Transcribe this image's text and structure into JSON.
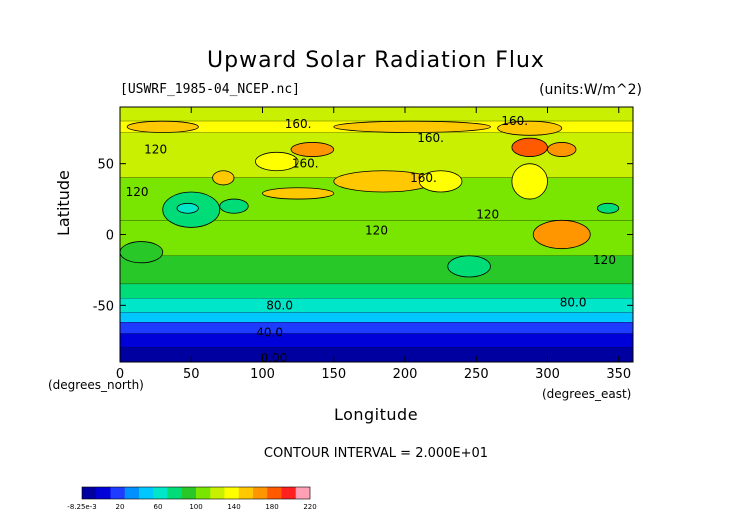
{
  "chart_data": {
    "type": "heatmap",
    "title": "Upward Solar Radiation Flux",
    "source_label": "[USWRF_1985-04_NCEP.nc]",
    "units_label": "(units:W/m^2)",
    "xlabel": "Longitude",
    "ylabel": "Latitude",
    "x_unit_label": "(degrees_north)",
    "y_unit_label": "(degrees_east)",
    "xlim": [
      0,
      360
    ],
    "ylim": [
      -90,
      90
    ],
    "x_ticks": [
      0,
      50,
      100,
      150,
      200,
      250,
      300,
      350
    ],
    "y_ticks": [
      -50,
      0,
      50
    ],
    "contour_interval_label": "CONTOUR INTERVAL = 2.000E+01",
    "contour_labels": [
      {
        "text": "160.",
        "lon": 125,
        "lat": 78
      },
      {
        "text": "160.",
        "lon": 218,
        "lat": 68
      },
      {
        "text": "160.",
        "lon": 277,
        "lat": 80
      },
      {
        "text": "160.",
        "lon": 130,
        "lat": 50
      },
      {
        "text": "160.",
        "lon": 213,
        "lat": 40
      },
      {
        "text": "120",
        "lon": 25,
        "lat": 60
      },
      {
        "text": "120",
        "lon": 12,
        "lat": 30
      },
      {
        "text": "120",
        "lon": 180,
        "lat": 3
      },
      {
        "text": "120",
        "lon": 258,
        "lat": 14
      },
      {
        "text": "120",
        "lon": 340,
        "lat": -18
      },
      {
        "text": "80.0",
        "lon": 112,
        "lat": -50
      },
      {
        "text": "80.0",
        "lon": 318,
        "lat": -48
      },
      {
        "text": "40.0",
        "lon": 105,
        "lat": -69
      },
      {
        "text": "0.00",
        "lon": 108,
        "lat": -87
      }
    ],
    "colorbar": {
      "tick_labels": [
        "-8.25e-3",
        "20",
        "60",
        "100",
        "140",
        "180",
        "220"
      ],
      "colors": [
        "#0000a0",
        "#0000d8",
        "#1e3cff",
        "#0090ff",
        "#00c8ff",
        "#00e6c8",
        "#00dc78",
        "#28c828",
        "#78e600",
        "#c8f000",
        "#ffff00",
        "#ffc800",
        "#ff9600",
        "#ff5a00",
        "#ff2020",
        "#ffa0b4"
      ]
    },
    "bands": [
      {
        "lat": [
          80,
          90
        ],
        "value": 140
      },
      {
        "lat": [
          72,
          80
        ],
        "value": 155
      },
      {
        "lat": [
          40,
          72
        ],
        "value": 140
      },
      {
        "lat": [
          10,
          40
        ],
        "value": 130
      },
      {
        "lat": [
          -15,
          10
        ],
        "value": 120
      },
      {
        "lat": [
          -35,
          -15
        ],
        "value": 115
      },
      {
        "lat": [
          -45,
          -35
        ],
        "value": 100
      },
      {
        "lat": [
          -55,
          -45
        ],
        "value": 80
      },
      {
        "lat": [
          -62,
          -55
        ],
        "value": 60
      },
      {
        "lat": [
          -70,
          -62
        ],
        "value": 40
      },
      {
        "lat": [
          -80,
          -70
        ],
        "value": 20
      },
      {
        "lat": [
          -90,
          -80
        ],
        "value": 5
      }
    ],
    "features": [
      {
        "lon": [
          5,
          55
        ],
        "lat": [
          72,
          80
        ],
        "value": 165
      },
      {
        "lon": [
          150,
          260
        ],
        "lat": [
          72,
          80
        ],
        "value": 165
      },
      {
        "lon": [
          265,
          310
        ],
        "lat": [
          70,
          80
        ],
        "value": 170
      },
      {
        "lon": [
          275,
          300
        ],
        "lat": [
          55,
          68
        ],
        "value": 200
      },
      {
        "lon": [
          300,
          320
        ],
        "lat": [
          55,
          65
        ],
        "value": 185
      },
      {
        "lon": [
          120,
          150
        ],
        "lat": [
          55,
          65
        ],
        "value": 180
      },
      {
        "lon": [
          95,
          125
        ],
        "lat": [
          45,
          58
        ],
        "value": 160
      },
      {
        "lon": [
          65,
          80
        ],
        "lat": [
          35,
          45
        ],
        "value": 175
      },
      {
        "lon": [
          150,
          220
        ],
        "lat": [
          30,
          45
        ],
        "value": 165
      },
      {
        "lon": [
          100,
          150
        ],
        "lat": [
          25,
          33
        ],
        "value": 165
      },
      {
        "lon": [
          290,
          330
        ],
        "lat": [
          -10,
          10
        ],
        "value": 180
      },
      {
        "lon": [
          275,
          300
        ],
        "lat": [
          25,
          50
        ],
        "value": 150
      },
      {
        "lon": [
          30,
          70
        ],
        "lat": [
          5,
          30
        ],
        "value": 100
      },
      {
        "lon": [
          40,
          55
        ],
        "lat": [
          15,
          22
        ],
        "value": 80
      },
      {
        "lon": [
          70,
          90
        ],
        "lat": [
          15,
          25
        ],
        "value": 90
      },
      {
        "lon": [
          210,
          240
        ],
        "lat": [
          30,
          45
        ],
        "value": 150
      },
      {
        "lon": [
          230,
          260
        ],
        "lat": [
          -30,
          -15
        ],
        "value": 100
      },
      {
        "lon": [
          0,
          30
        ],
        "lat": [
          -20,
          -5
        ],
        "value": 110
      },
      {
        "lon": [
          335,
          350
        ],
        "lat": [
          15,
          22
        ],
        "value": 90
      }
    ]
  }
}
